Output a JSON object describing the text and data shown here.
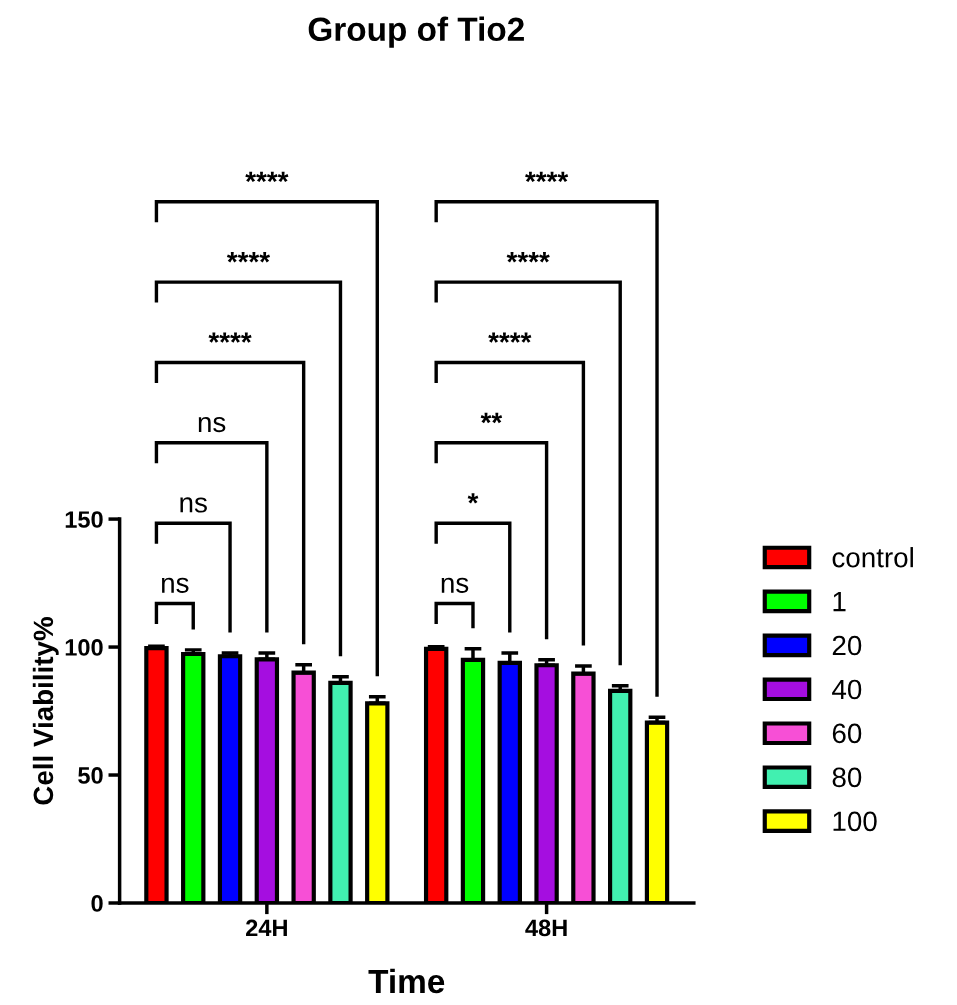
{
  "chart_data": {
    "type": "bar",
    "title": "Group of Tio2",
    "xlabel": "Time",
    "ylabel": "Cell Viability%",
    "categories": [
      "24H",
      "48H"
    ],
    "series": [
      {
        "name": "control",
        "color": "#ff0000",
        "values": [
          99.6,
          99.3
        ],
        "errors": [
          0.7,
          0.8
        ]
      },
      {
        "name": "1",
        "color": "#00ff00",
        "values": [
          97.3,
          95.0
        ],
        "errors": [
          1.6,
          4.3
        ]
      },
      {
        "name": "20",
        "color": "#0000ff",
        "values": [
          96.4,
          93.8
        ],
        "errors": [
          1.3,
          3.9
        ]
      },
      {
        "name": "40",
        "color": "#a50ee0",
        "values": [
          95.2,
          92.9
        ],
        "errors": [
          2.5,
          2.1
        ]
      },
      {
        "name": "60",
        "color": "#f74fd6",
        "values": [
          90.0,
          89.6
        ],
        "errors": [
          3.1,
          3.0
        ]
      },
      {
        "name": "80",
        "color": "#41f0b0",
        "values": [
          86.0,
          82.9
        ],
        "errors": [
          2.4,
          2.0
        ]
      },
      {
        "name": "100",
        "color": "#ffff00",
        "values": [
          78.0,
          70.5
        ],
        "errors": [
          2.6,
          2.1
        ]
      }
    ],
    "ylim": [
      0,
      150
    ],
    "yticks": [
      0,
      50,
      100,
      150
    ],
    "grid": false,
    "legend": "right",
    "annotations": [
      "ns",
      "ns",
      "ns",
      "****",
      "****",
      "****",
      "ns",
      "*",
      "**",
      "****",
      "****",
      "****"
    ]
  }
}
